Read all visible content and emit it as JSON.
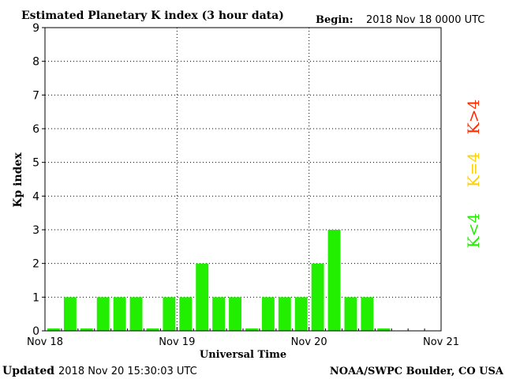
{
  "header": {
    "title": "Estimated Planetary K index (3 hour data)",
    "begin_label": "Begin:",
    "begin_value": "2018 Nov 18 0000 UTC"
  },
  "footer": {
    "updated_label": "Updated",
    "updated_value": "2018 Nov 20 15:30:03 UTC",
    "source": "NOAA/SWPC Boulder, CO USA"
  },
  "legend": {
    "above": {
      "label": "K>4",
      "color": "#ff2a00"
    },
    "equal": {
      "label": "K=4",
      "color": "#ffd000"
    },
    "below": {
      "label": "K<4",
      "color": "#22ee00"
    }
  },
  "chart_data": {
    "type": "bar",
    "title": "Estimated Planetary K index (3 hour data)",
    "xlabel": "Universal Time",
    "ylabel": "Kp index",
    "ylim": [
      0,
      9
    ],
    "yticks": [
      0,
      1,
      2,
      3,
      4,
      5,
      6,
      7,
      8,
      9
    ],
    "xticks": [
      "Nov 18",
      "Nov 19",
      "Nov 20",
      "Nov 21"
    ],
    "bars_per_day": 8,
    "grid": true,
    "bar_color": "#22ee00",
    "values": [
      0,
      1,
      0,
      1,
      1,
      1,
      0,
      1,
      1,
      2,
      1,
      1,
      0,
      1,
      1,
      1,
      2,
      3,
      1,
      1,
      0
    ]
  }
}
